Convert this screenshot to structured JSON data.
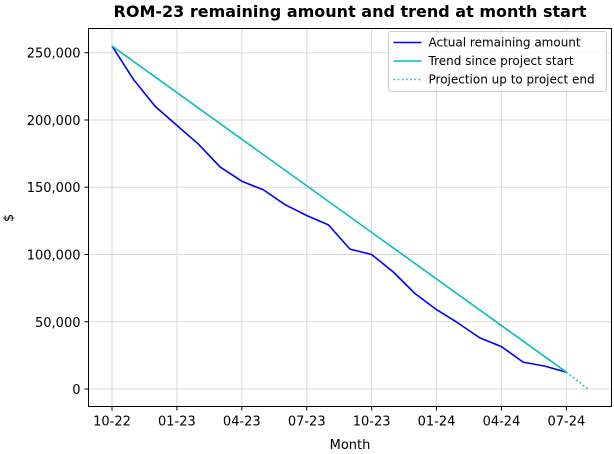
{
  "chart_data": {
    "type": "line",
    "title": "ROM-23 remaining amount and trend at month start",
    "xlabel": "Month",
    "ylabel": "$",
    "x_tick_labels": [
      "10-22",
      "01-23",
      "04-23",
      "07-23",
      "10-23",
      "01-24",
      "04-24",
      "07-24"
    ],
    "y_tick_labels": [
      "0",
      "50,000",
      "100,000",
      "150,000",
      "200,000",
      "250,000"
    ],
    "y_ticks": [
      0,
      50000,
      100000,
      150000,
      200000,
      250000
    ],
    "ylim": [
      -13000,
      268000
    ],
    "x_month_range": [
      "2022-09",
      "2024-09"
    ],
    "grid": true,
    "legend_position": "top-right",
    "series": [
      {
        "name": "Actual remaining amount",
        "color": "#0000ff",
        "style": "solid",
        "points": [
          [
            "2022-10",
            255000
          ],
          [
            "2022-11",
            230000
          ],
          [
            "2022-12",
            210000
          ],
          [
            "2023-01",
            196000
          ],
          [
            "2023-02",
            182000
          ],
          [
            "2023-03",
            165000
          ],
          [
            "2023-04",
            154500
          ],
          [
            "2023-05",
            148000
          ],
          [
            "2023-06",
            137000
          ],
          [
            "2023-07",
            129000
          ],
          [
            "2023-08",
            122000
          ],
          [
            "2023-09",
            104000
          ],
          [
            "2023-10",
            100000
          ],
          [
            "2023-11",
            87000
          ],
          [
            "2023-12",
            71000
          ],
          [
            "2024-01",
            59000
          ],
          [
            "2024-02",
            49000
          ],
          [
            "2024-03",
            38000
          ],
          [
            "2024-04",
            31500
          ],
          [
            "2024-05",
            20000
          ],
          [
            "2024-06",
            17000
          ],
          [
            "2024-07",
            12500
          ]
        ]
      },
      {
        "name": "Trend since project start",
        "color": "#00bfbf",
        "style": "solid",
        "points": [
          [
            "2022-10",
            255000
          ],
          [
            "2024-07",
            12500
          ]
        ]
      },
      {
        "name": "Projection up to project end",
        "color": "#00bfbf",
        "style": "dotted",
        "points": [
          [
            "2024-07",
            12500
          ],
          [
            "2024-08",
            0
          ]
        ]
      }
    ]
  }
}
